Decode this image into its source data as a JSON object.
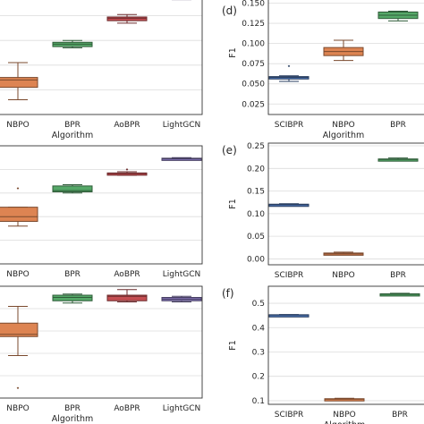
{
  "chart_data": [
    {
      "type": "box",
      "title": "",
      "xlabel": "Algorithm",
      "ylabel": "",
      "ylim": [
        0.0,
        1.0
      ],
      "categories": [
        "NBPO",
        "BPR",
        "AoBPR",
        "LightGCN"
      ],
      "colors": [
        "#dd8452",
        "#55a868",
        "#c44e52",
        "#8172b3"
      ],
      "boxes": [
        {
          "whislo": 0.12,
          "q1": 0.22,
          "med": 0.28,
          "q3": 0.3,
          "whishi": 0.42,
          "fliers": []
        },
        {
          "whislo": 0.54,
          "q1": 0.55,
          "med": 0.57,
          "q3": 0.585,
          "whishi": 0.6,
          "fliers": []
        },
        {
          "whislo": 0.74,
          "q1": 0.76,
          "med": 0.78,
          "q3": 0.79,
          "whishi": 0.81,
          "fliers": []
        },
        {
          "whislo": 0.93,
          "q1": 0.935,
          "med": 0.95,
          "q3": 0.955,
          "whishi": 0.965,
          "fliers": []
        }
      ]
    },
    {
      "type": "box",
      "title": "(d)",
      "xlabel": "Algorithm",
      "ylabel": "F1",
      "ylim": [
        0.012,
        0.165
      ],
      "yticks": [
        0.025,
        0.05,
        0.075,
        0.1,
        0.125,
        0.15
      ],
      "ytick_labels": [
        "0.025",
        "0.050",
        "0.075",
        "0.100",
        "0.125",
        "0.150"
      ],
      "categories": [
        "SCIBPR",
        "NBPO",
        "BPR"
      ],
      "colors": [
        "#4c72b0",
        "#dd8452",
        "#55a868"
      ],
      "boxes": [
        {
          "whislo": 0.053,
          "q1": 0.056,
          "med": 0.058,
          "q3": 0.059,
          "whishi": 0.06,
          "fliers": [
            0.072
          ]
        },
        {
          "whislo": 0.079,
          "q1": 0.085,
          "med": 0.09,
          "q3": 0.095,
          "whishi": 0.104,
          "fliers": []
        },
        {
          "whislo": 0.128,
          "q1": 0.131,
          "med": 0.135,
          "q3": 0.139,
          "whishi": 0.14,
          "fliers": []
        }
      ]
    },
    {
      "type": "box",
      "title": "",
      "xlabel": "",
      "ylabel": "",
      "ylim": [
        0.0,
        1.0
      ],
      "categories": [
        "NBPO",
        "BPR",
        "AoBPR",
        "LightGCN"
      ],
      "colors": [
        "#dd8452",
        "#55a868",
        "#c44e52",
        "#8172b3"
      ],
      "boxes": [
        {
          "whislo": 0.32,
          "q1": 0.36,
          "med": 0.4,
          "q3": 0.48,
          "whishi": 0.48,
          "fliers": [
            0.64
          ]
        },
        {
          "whislo": 0.6,
          "q1": 0.61,
          "med": 0.62,
          "q3": 0.66,
          "whishi": 0.67,
          "fliers": []
        },
        {
          "whislo": 0.75,
          "q1": 0.76,
          "med": 0.765,
          "q3": 0.77,
          "whishi": 0.78,
          "fliers": [
            0.8
          ]
        },
        {
          "whislo": 0.88,
          "q1": 0.885,
          "med": 0.89,
          "q3": 0.895,
          "whishi": 0.9,
          "fliers": []
        }
      ]
    },
    {
      "type": "box",
      "title": "(e)",
      "xlabel": "",
      "ylabel": "F1",
      "ylim": [
        -0.013,
        0.256
      ],
      "yticks": [
        0.0,
        0.05,
        0.1,
        0.15,
        0.2,
        0.25
      ],
      "ytick_labels": [
        "0.00",
        "0.05",
        "0.10",
        "0.15",
        "0.20",
        "0.25"
      ],
      "categories": [
        "SCIBPR",
        "NBPO",
        "BPR"
      ],
      "colors": [
        "#4c72b0",
        "#dd8452",
        "#55a868"
      ],
      "boxes": [
        {
          "whislo": 0.118,
          "q1": 0.119,
          "med": 0.12,
          "q3": 0.121,
          "whishi": 0.122,
          "fliers": []
        },
        {
          "whislo": 0.009,
          "q1": 0.01,
          "med": 0.011,
          "q3": 0.013,
          "whishi": 0.015,
          "fliers": []
        },
        {
          "whislo": 0.217,
          "q1": 0.219,
          "med": 0.22,
          "q3": 0.221,
          "whishi": 0.223,
          "fliers": []
        }
      ]
    },
    {
      "type": "box",
      "title": "",
      "xlabel": "Algorithm",
      "ylabel": "",
      "ylim": [
        0.0,
        1.0
      ],
      "categories": [
        "NBPO",
        "BPR",
        "AoBPR",
        "LightGCN"
      ],
      "colors": [
        "#dd8452",
        "#55a868",
        "#c44e52",
        "#8172b3"
      ],
      "boxes": [
        {
          "whislo": 0.38,
          "q1": 0.55,
          "med": 0.57,
          "q3": 0.67,
          "whishi": 0.82,
          "fliers": [
            0.09
          ]
        },
        {
          "whislo": 0.85,
          "q1": 0.87,
          "med": 0.9,
          "q3": 0.92,
          "whishi": 0.93,
          "fliers": []
        },
        {
          "whislo": 0.86,
          "q1": 0.87,
          "med": 0.91,
          "q3": 0.92,
          "whishi": 0.97,
          "fliers": []
        },
        {
          "whislo": 0.86,
          "q1": 0.87,
          "med": 0.885,
          "q3": 0.9,
          "whishi": 0.91,
          "fliers": []
        }
      ]
    },
    {
      "type": "box",
      "title": "(f)",
      "xlabel": "Algorithm",
      "ylabel": "F1",
      "ylim": [
        0.085,
        0.57
      ],
      "yticks": [
        0.1,
        0.2,
        0.3,
        0.4,
        0.5
      ],
      "ytick_labels": [
        "0.1",
        "0.2",
        "0.3",
        "0.4",
        "0.5"
      ],
      "categories": [
        "SCIBPR",
        "NBPO",
        "BPR"
      ],
      "colors": [
        "#4c72b0",
        "#dd8452",
        "#55a868"
      ],
      "boxes": [
        {
          "whislo": 0.45,
          "q1": 0.451,
          "med": 0.452,
          "q3": 0.453,
          "whishi": 0.454,
          "fliers": []
        },
        {
          "whislo": 0.103,
          "q1": 0.104,
          "med": 0.106,
          "q3": 0.108,
          "whishi": 0.11,
          "fliers": []
        },
        {
          "whislo": 0.534,
          "q1": 0.535,
          "med": 0.537,
          "q3": 0.539,
          "whishi": 0.541,
          "fliers": []
        }
      ]
    }
  ]
}
